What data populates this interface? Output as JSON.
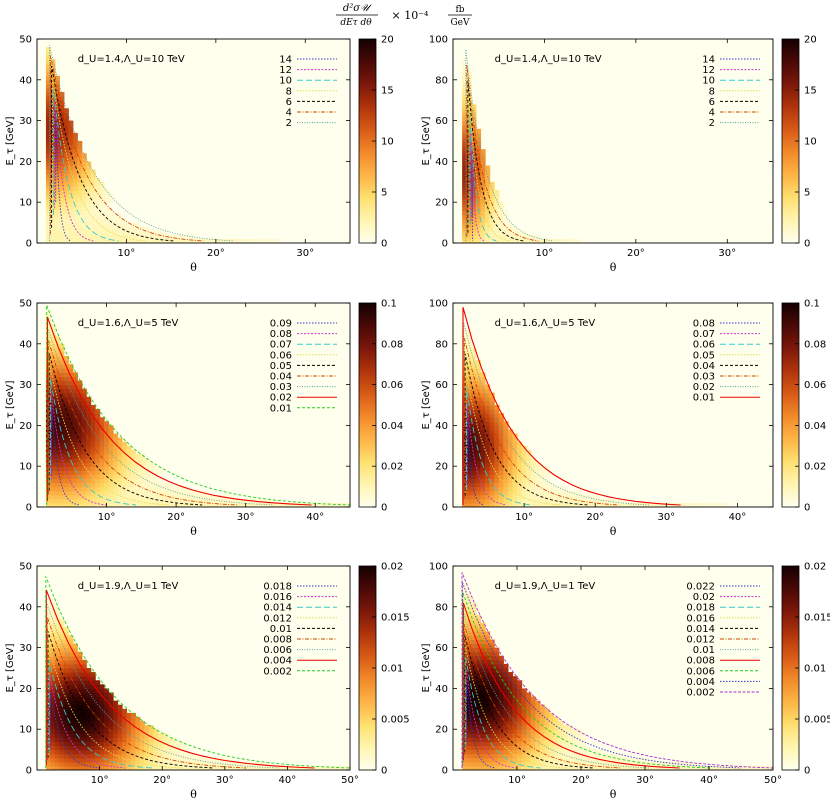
{
  "figure": {
    "title_parts": {
      "frac_num": "d²σ𝒰",
      "frac_den": "dEτ dθ",
      "scale": "× 10⁻⁴",
      "unit_num": "fb",
      "unit_den": "GeV"
    }
  },
  "colormap": {
    "stops": [
      "#ffffee",
      "#fff5b0",
      "#ffe070",
      "#fdb446",
      "#f18a2a",
      "#d85a16",
      "#b0340c",
      "#7c170a",
      "#4a0906",
      "#140000"
    ]
  },
  "chart_data": [
    {
      "type": "heatmap",
      "annotation": "d_U=1.4,Λ_U=10 TeV",
      "xlabel": "θ",
      "ylabel": "E_τ [GeV]",
      "xlim": [
        0,
        35
      ],
      "ylim": [
        0,
        50
      ],
      "xticks": [
        {
          "v": 10,
          "label": "10°"
        },
        {
          "v": 20,
          "label": "20°"
        },
        {
          "v": 30,
          "label": "30°"
        }
      ],
      "yticks": [
        0,
        10,
        20,
        30,
        40,
        50
      ],
      "colorbar": {
        "range": [
          0,
          20
        ],
        "ticks": [
          "0",
          "5",
          "10",
          "15",
          "20"
        ]
      },
      "legend": [
        "14",
        "12",
        "10",
        "8",
        "6",
        "4",
        "2"
      ],
      "peak": {
        "x": 1.8,
        "y": 28
      },
      "outer_contour": {
        "x_max": 22,
        "y_max": 47
      },
      "density": "low"
    },
    {
      "type": "heatmap",
      "annotation": "d_U=1.4,Λ_U=10 TeV",
      "xlabel": "θ",
      "ylabel": "E_τ [GeV]",
      "xlim": [
        0,
        35
      ],
      "ylim": [
        0,
        100
      ],
      "xticks": [
        {
          "v": 10,
          "label": "10°"
        },
        {
          "v": 20,
          "label": "20°"
        },
        {
          "v": 30,
          "label": "30°"
        }
      ],
      "yticks": [
        0,
        20,
        40,
        60,
        80,
        100
      ],
      "colorbar": {
        "range": [
          0,
          20
        ],
        "ticks": [
          "0",
          "5",
          "10",
          "15",
          "20"
        ]
      },
      "legend": [
        "14",
        "12",
        "10",
        "8",
        "6",
        "4",
        "2"
      ],
      "peak": {
        "x": 1.2,
        "y": 35
      },
      "outer_contour": {
        "x_max": 11,
        "y_max": 92
      },
      "density": "low"
    },
    {
      "type": "heatmap",
      "annotation": "d_U=1.6,Λ_U=5 TeV",
      "xlabel": "θ",
      "ylabel": "E_τ [GeV]",
      "xlim": [
        0,
        45
      ],
      "ylim": [
        0,
        50
      ],
      "xticks": [
        {
          "v": 10,
          "label": "10°"
        },
        {
          "v": 20,
          "label": "20°"
        },
        {
          "v": 30,
          "label": "30°"
        },
        {
          "v": 40,
          "label": "40°"
        }
      ],
      "yticks": [
        0,
        10,
        20,
        30,
        40,
        50
      ],
      "colorbar": {
        "range": [
          0,
          0.1
        ],
        "ticks": [
          "0",
          "0.02",
          "0.04",
          "0.06",
          "0.08",
          "0.1"
        ]
      },
      "legend": [
        "0.09",
        "0.08",
        "0.07",
        "0.06",
        "0.05",
        "0.04",
        "0.03",
        "0.02",
        "0.01"
      ],
      "peak": {
        "x": 3,
        "y": 20
      },
      "outer_contour": {
        "x_max": 45,
        "y_max": 48
      },
      "density": "medium"
    },
    {
      "type": "heatmap",
      "annotation": "d_U=1.6,Λ_U=5 TeV",
      "xlabel": "θ",
      "ylabel": "E_τ [GeV]",
      "xlim": [
        0,
        45
      ],
      "ylim": [
        0,
        100
      ],
      "xticks": [
        {
          "v": 10,
          "label": "10°"
        },
        {
          "v": 20,
          "label": "20°"
        },
        {
          "v": 30,
          "label": "30°"
        },
        {
          "v": 40,
          "label": "40°"
        }
      ],
      "yticks": [
        0,
        20,
        40,
        60,
        80,
        100
      ],
      "colorbar": {
        "range": [
          0,
          0.1
        ],
        "ticks": [
          "0",
          "0.02",
          "0.04",
          "0.06",
          "0.08",
          "0.1"
        ]
      },
      "legend": [
        "0.08",
        "0.07",
        "0.06",
        "0.05",
        "0.04",
        "0.03",
        "0.02",
        "0.01"
      ],
      "peak": {
        "x": 1.8,
        "y": 30
      },
      "outer_contour": {
        "x_max": 32,
        "y_max": 95
      },
      "density": "medium"
    },
    {
      "type": "heatmap",
      "annotation": "d_U=1.9,Λ_U=1 TeV",
      "xlabel": "θ",
      "ylabel": "E_τ [GeV]",
      "xlim": [
        0,
        50
      ],
      "ylim": [
        0,
        50
      ],
      "xticks": [
        {
          "v": 10,
          "label": "10°"
        },
        {
          "v": 20,
          "label": "20°"
        },
        {
          "v": 30,
          "label": "30°"
        },
        {
          "v": 40,
          "label": "40°"
        },
        {
          "v": 50,
          "label": "50°"
        }
      ],
      "yticks": [
        0,
        10,
        20,
        30,
        40,
        50
      ],
      "colorbar": {
        "range": [
          0,
          0.02
        ],
        "ticks": [
          "0",
          "0.005",
          "0.01",
          "0.015",
          "0.02"
        ]
      },
      "legend": [
        "0.018",
        "0.016",
        "0.014",
        "0.012",
        "0.01",
        "0.008",
        "0.006",
        "0.004",
        "0.002"
      ],
      "peak": {
        "x": 7,
        "y": 14
      },
      "outer_contour": {
        "x_max": 50,
        "y_max": 46
      },
      "density": "high"
    },
    {
      "type": "heatmap",
      "annotation": "d_U=1.9,Λ_U=1 TeV",
      "xlabel": "θ",
      "ylabel": "E_τ [GeV]",
      "xlim": [
        0,
        50
      ],
      "ylim": [
        0,
        100
      ],
      "xticks": [
        {
          "v": 10,
          "label": "10°"
        },
        {
          "v": 20,
          "label": "20°"
        },
        {
          "v": 30,
          "label": "30°"
        },
        {
          "v": 40,
          "label": "40°"
        },
        {
          "v": 50,
          "label": "50°"
        }
      ],
      "yticks": [
        0,
        20,
        40,
        60,
        80,
        100
      ],
      "colorbar": {
        "range": [
          0,
          0.02
        ],
        "ticks": [
          "0",
          "0.005",
          "0.01",
          "0.015",
          "0.02"
        ]
      },
      "legend": [
        "0.022",
        "0.02",
        "0.018",
        "0.016",
        "0.014",
        "0.012",
        "0.01",
        "0.008",
        "0.006",
        "0.004",
        "0.002"
      ],
      "peak": {
        "x": 4,
        "y": 35
      },
      "outer_contour": {
        "x_max": 50,
        "y_max": 94
      },
      "density": "high"
    }
  ]
}
